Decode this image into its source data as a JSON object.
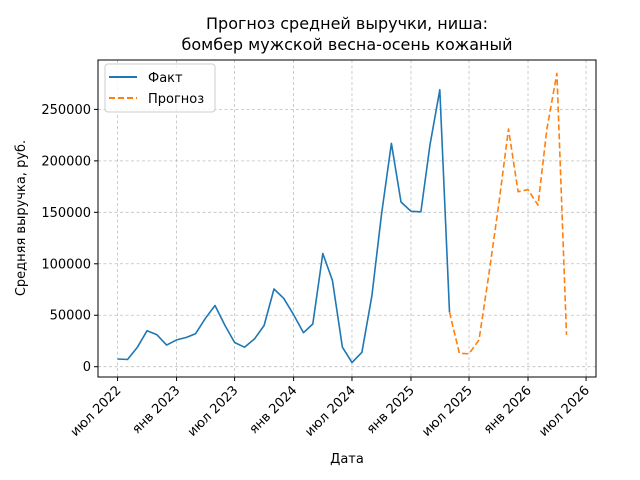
{
  "chart_data": {
    "type": "line",
    "title": "Прогноз средней выручки, ниша:",
    "subtitle": "бомбер мужской весна-осень кожаный",
    "xlabel": "Дата",
    "ylabel": "Средняя выручка, руб.",
    "ylim": [
      -10000,
      298000
    ],
    "yticks": [
      0,
      50000,
      100000,
      150000,
      200000,
      250000
    ],
    "xlim": [
      "2022-05-01",
      "2026-08-01"
    ],
    "xticks": [
      {
        "date": "2022-07-01",
        "label": "июл 2022"
      },
      {
        "date": "2023-01-01",
        "label": "янв 2023"
      },
      {
        "date": "2023-07-01",
        "label": "июл 2023"
      },
      {
        "date": "2024-01-01",
        "label": "янв 2024"
      },
      {
        "date": "2024-07-01",
        "label": "июл 2024"
      },
      {
        "date": "2025-01-01",
        "label": "янв 2025"
      },
      {
        "date": "2025-07-01",
        "label": "июл 2025"
      },
      {
        "date": "2026-01-01",
        "label": "янв 2026"
      },
      {
        "date": "2026-07-01",
        "label": "июл 2026"
      }
    ],
    "grid": true,
    "legend_position": "top-left",
    "series": [
      {
        "name": "Факт",
        "color": "#1f77b4",
        "style": "solid",
        "x": [
          "2022-07-01",
          "2022-08-01",
          "2022-09-01",
          "2022-10-01",
          "2022-11-01",
          "2022-12-01",
          "2023-01-01",
          "2023-02-01",
          "2023-03-01",
          "2023-04-01",
          "2023-05-01",
          "2023-06-01",
          "2023-07-01",
          "2023-08-01",
          "2023-09-01",
          "2023-10-01",
          "2023-11-01",
          "2023-12-01",
          "2024-01-01",
          "2024-02-01",
          "2024-03-01",
          "2024-04-01",
          "2024-05-01",
          "2024-06-01",
          "2024-07-01",
          "2024-08-01",
          "2024-09-01",
          "2024-10-01",
          "2024-11-01",
          "2024-12-01",
          "2025-01-01",
          "2025-02-01",
          "2025-03-01",
          "2025-04-01",
          "2025-05-01"
        ],
        "y": [
          7500,
          7000,
          19000,
          35000,
          31000,
          21000,
          26000,
          28500,
          32000,
          47000,
          59500,
          40000,
          23500,
          19000,
          27000,
          40000,
          75500,
          66500,
          50500,
          33000,
          41500,
          110000,
          84000,
          19000,
          4000,
          14000,
          69000,
          148000,
          217000,
          160000,
          151000,
          150500,
          215000,
          269000,
          53000
        ]
      },
      {
        "name": "Прогноз",
        "color": "#ff7f0e",
        "style": "dashed",
        "x": [
          "2025-05-01",
          "2025-06-01",
          "2025-07-01",
          "2025-08-01",
          "2025-09-01",
          "2025-10-01",
          "2025-11-01",
          "2025-12-01",
          "2026-01-01",
          "2026-02-01",
          "2026-03-01",
          "2026-04-01",
          "2026-05-01"
        ],
        "y": [
          53000,
          13000,
          12500,
          26000,
          90000,
          156000,
          231000,
          170000,
          172000,
          157000,
          231000,
          285000,
          31000
        ]
      }
    ]
  }
}
